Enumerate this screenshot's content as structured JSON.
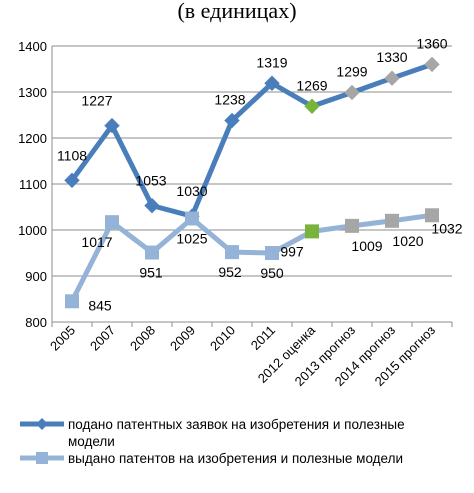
{
  "chart_data": {
    "type": "line",
    "title": "(в единицах)",
    "categories": [
      "2005",
      "2007",
      "2008",
      "2009",
      "2010",
      "2011",
      "2012 оценка",
      "2013 прогноз",
      "2014 прогноз",
      "2015 прогноз"
    ],
    "ylim": [
      800,
      1400
    ],
    "yticks": [
      800,
      900,
      1000,
      1100,
      1200,
      1300,
      1400
    ],
    "grid": "horizontal",
    "legend_position": "bottom",
    "series": [
      {
        "name": "подано патентных заявок на изобретения и полезные модели",
        "name_lines": [
          "подано патентных заявок на изобретения и полезные",
          "модели"
        ],
        "values": [
          1108,
          1227,
          1053,
          1030,
          1238,
          1319,
          1269,
          1299,
          1330,
          1360
        ],
        "labels": [
          "1108",
          "1227",
          "1053",
          "1030",
          "1238",
          "1319",
          "1269",
          "1299",
          "1330",
          "1360"
        ],
        "color": "#4a7ebb",
        "marker": "diamond",
        "marker_colors": [
          "#4a7ebb",
          "#4a7ebb",
          "#4a7ebb",
          "#4a7ebb",
          "#4a7ebb",
          "#4a7ebb",
          "#78b43c",
          "#a6a6a6",
          "#a6a6a6",
          "#a6a6a6"
        ]
      },
      {
        "name": "выдано патентов на изобретения и полезные модели",
        "name_lines": [
          "выдано патентов на изобретения и полезные модели"
        ],
        "values": [
          845,
          1017,
          951,
          1025,
          952,
          950,
          997,
          1009,
          1020,
          1032
        ],
        "labels": [
          "845",
          "1017",
          "951",
          "1025",
          "952",
          "950",
          "997",
          "1009",
          "1020",
          "1032"
        ],
        "color": "#95b3d7",
        "marker": "square",
        "marker_colors": [
          "#95b3d7",
          "#95b3d7",
          "#95b3d7",
          "#95b3d7",
          "#95b3d7",
          "#95b3d7",
          "#78b43c",
          "#a6a6a6",
          "#a6a6a6",
          "#a6a6a6"
        ]
      }
    ]
  }
}
